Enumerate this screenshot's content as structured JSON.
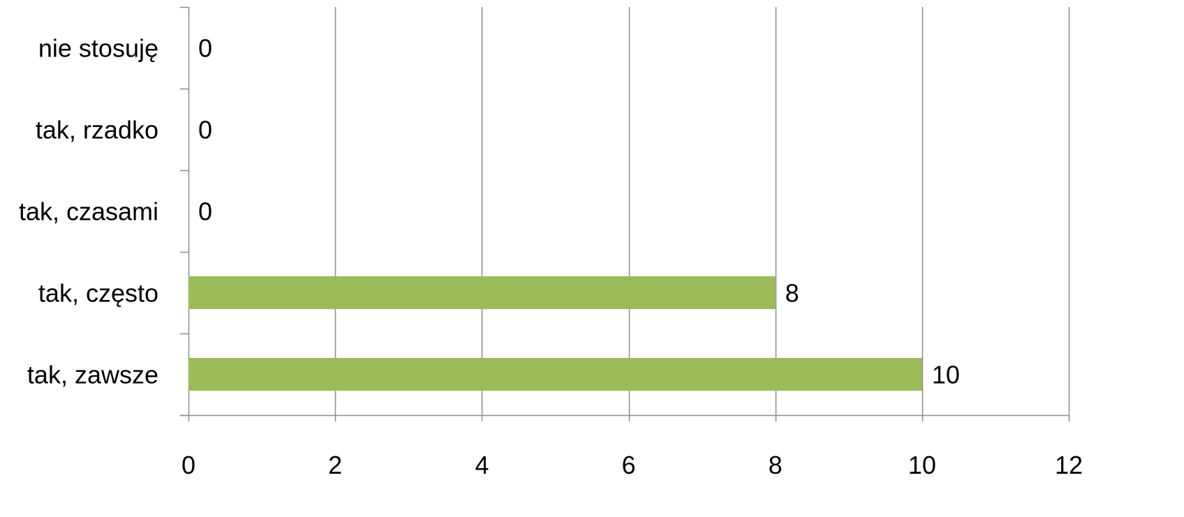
{
  "chart_data": {
    "type": "bar",
    "orientation": "horizontal",
    "title": "",
    "xlabel": "",
    "ylabel": "",
    "categories": [
      "tak, zawsze",
      "tak, często",
      "tak, czasami",
      "tak, rzadko",
      "nie stosuję"
    ],
    "series": [
      {
        "values": [
          10,
          8,
          0,
          0,
          0
        ],
        "color": "#9BBB59"
      }
    ],
    "data_labels": [
      "10",
      "8",
      "0",
      "0",
      "0"
    ],
    "xlim": [
      0,
      12
    ],
    "x_ticks": [
      0,
      2,
      4,
      6,
      8,
      10,
      12
    ],
    "x_tick_labels": [
      "0",
      "2",
      "4",
      "6",
      "8",
      "10",
      "12"
    ],
    "grid": "vertical",
    "grid_color": "#8C8C8C",
    "axis_color": "#8C8C8C",
    "legend": "none"
  }
}
